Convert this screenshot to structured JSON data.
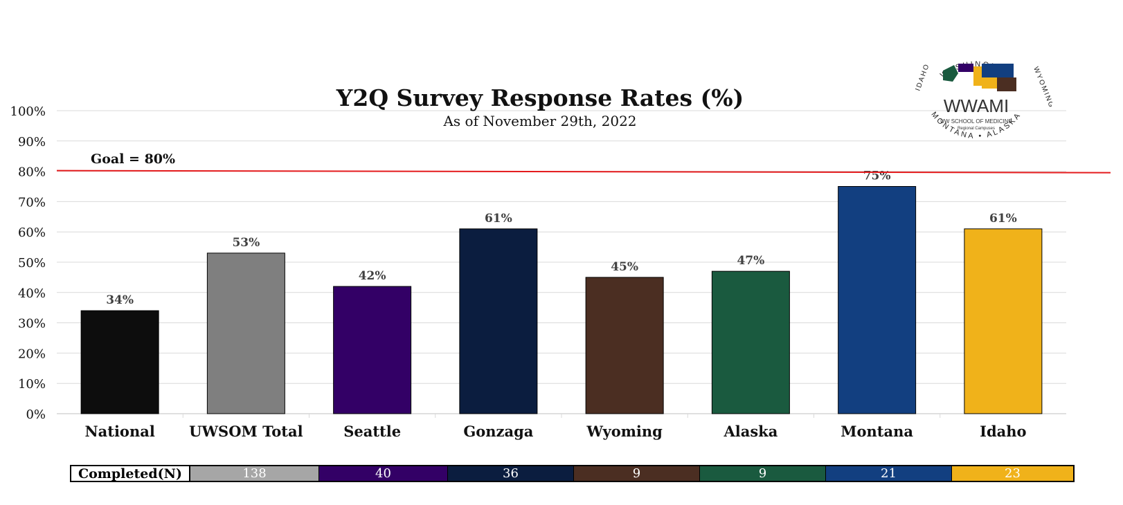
{
  "chart_data": {
    "type": "bar",
    "title": "Y2Q Survey Response Rates (%)",
    "subtitle": "As of November 29th, 2022",
    "categories": [
      "National",
      "UWSOM Total",
      "Seattle",
      "Gonzaga",
      "Wyoming",
      "Alaska",
      "Montana",
      "Idaho"
    ],
    "values": [
      34,
      53,
      42,
      61,
      45,
      47,
      75,
      61
    ],
    "data_labels": [
      "34%",
      "53%",
      "42%",
      "61%",
      "45%",
      "47%",
      "75%",
      "61%"
    ],
    "colors": [
      "#0d0d0d",
      "#7f7f7f",
      "#330066",
      "#0b1d3f",
      "#4b2e22",
      "#1a5a3f",
      "#123f80",
      "#f0b21a"
    ],
    "ylim": [
      0,
      100
    ],
    "y_ticks": [
      "0%",
      "10%",
      "20%",
      "30%",
      "40%",
      "50%",
      "60%",
      "70%",
      "80%",
      "90%",
      "100%"
    ],
    "grid": true,
    "goal": {
      "value": 80,
      "label": "Goal = 80%",
      "color": "#e41a1c"
    }
  },
  "completed_table": {
    "header": "Completed(N)",
    "cells": [
      {
        "value": "138",
        "color": "#a6a6a6"
      },
      {
        "value": "40",
        "color": "#330066"
      },
      {
        "value": "36",
        "color": "#0b1d3f"
      },
      {
        "value": "9",
        "color": "#4b2e22"
      },
      {
        "value": "9",
        "color": "#1a5a3f"
      },
      {
        "value": "21",
        "color": "#123f80"
      },
      {
        "value": "23",
        "color": "#f0b21a"
      }
    ]
  },
  "logo": {
    "top_text": "WASHINGTON",
    "left_text": "IDAHO",
    "right_text": "WYOMING",
    "bottom_text": "MONTANA • ALASKA",
    "name": "WWAMI",
    "line1": "UW SCHOOL OF MEDICINE",
    "line2": "Regional Campuses"
  }
}
